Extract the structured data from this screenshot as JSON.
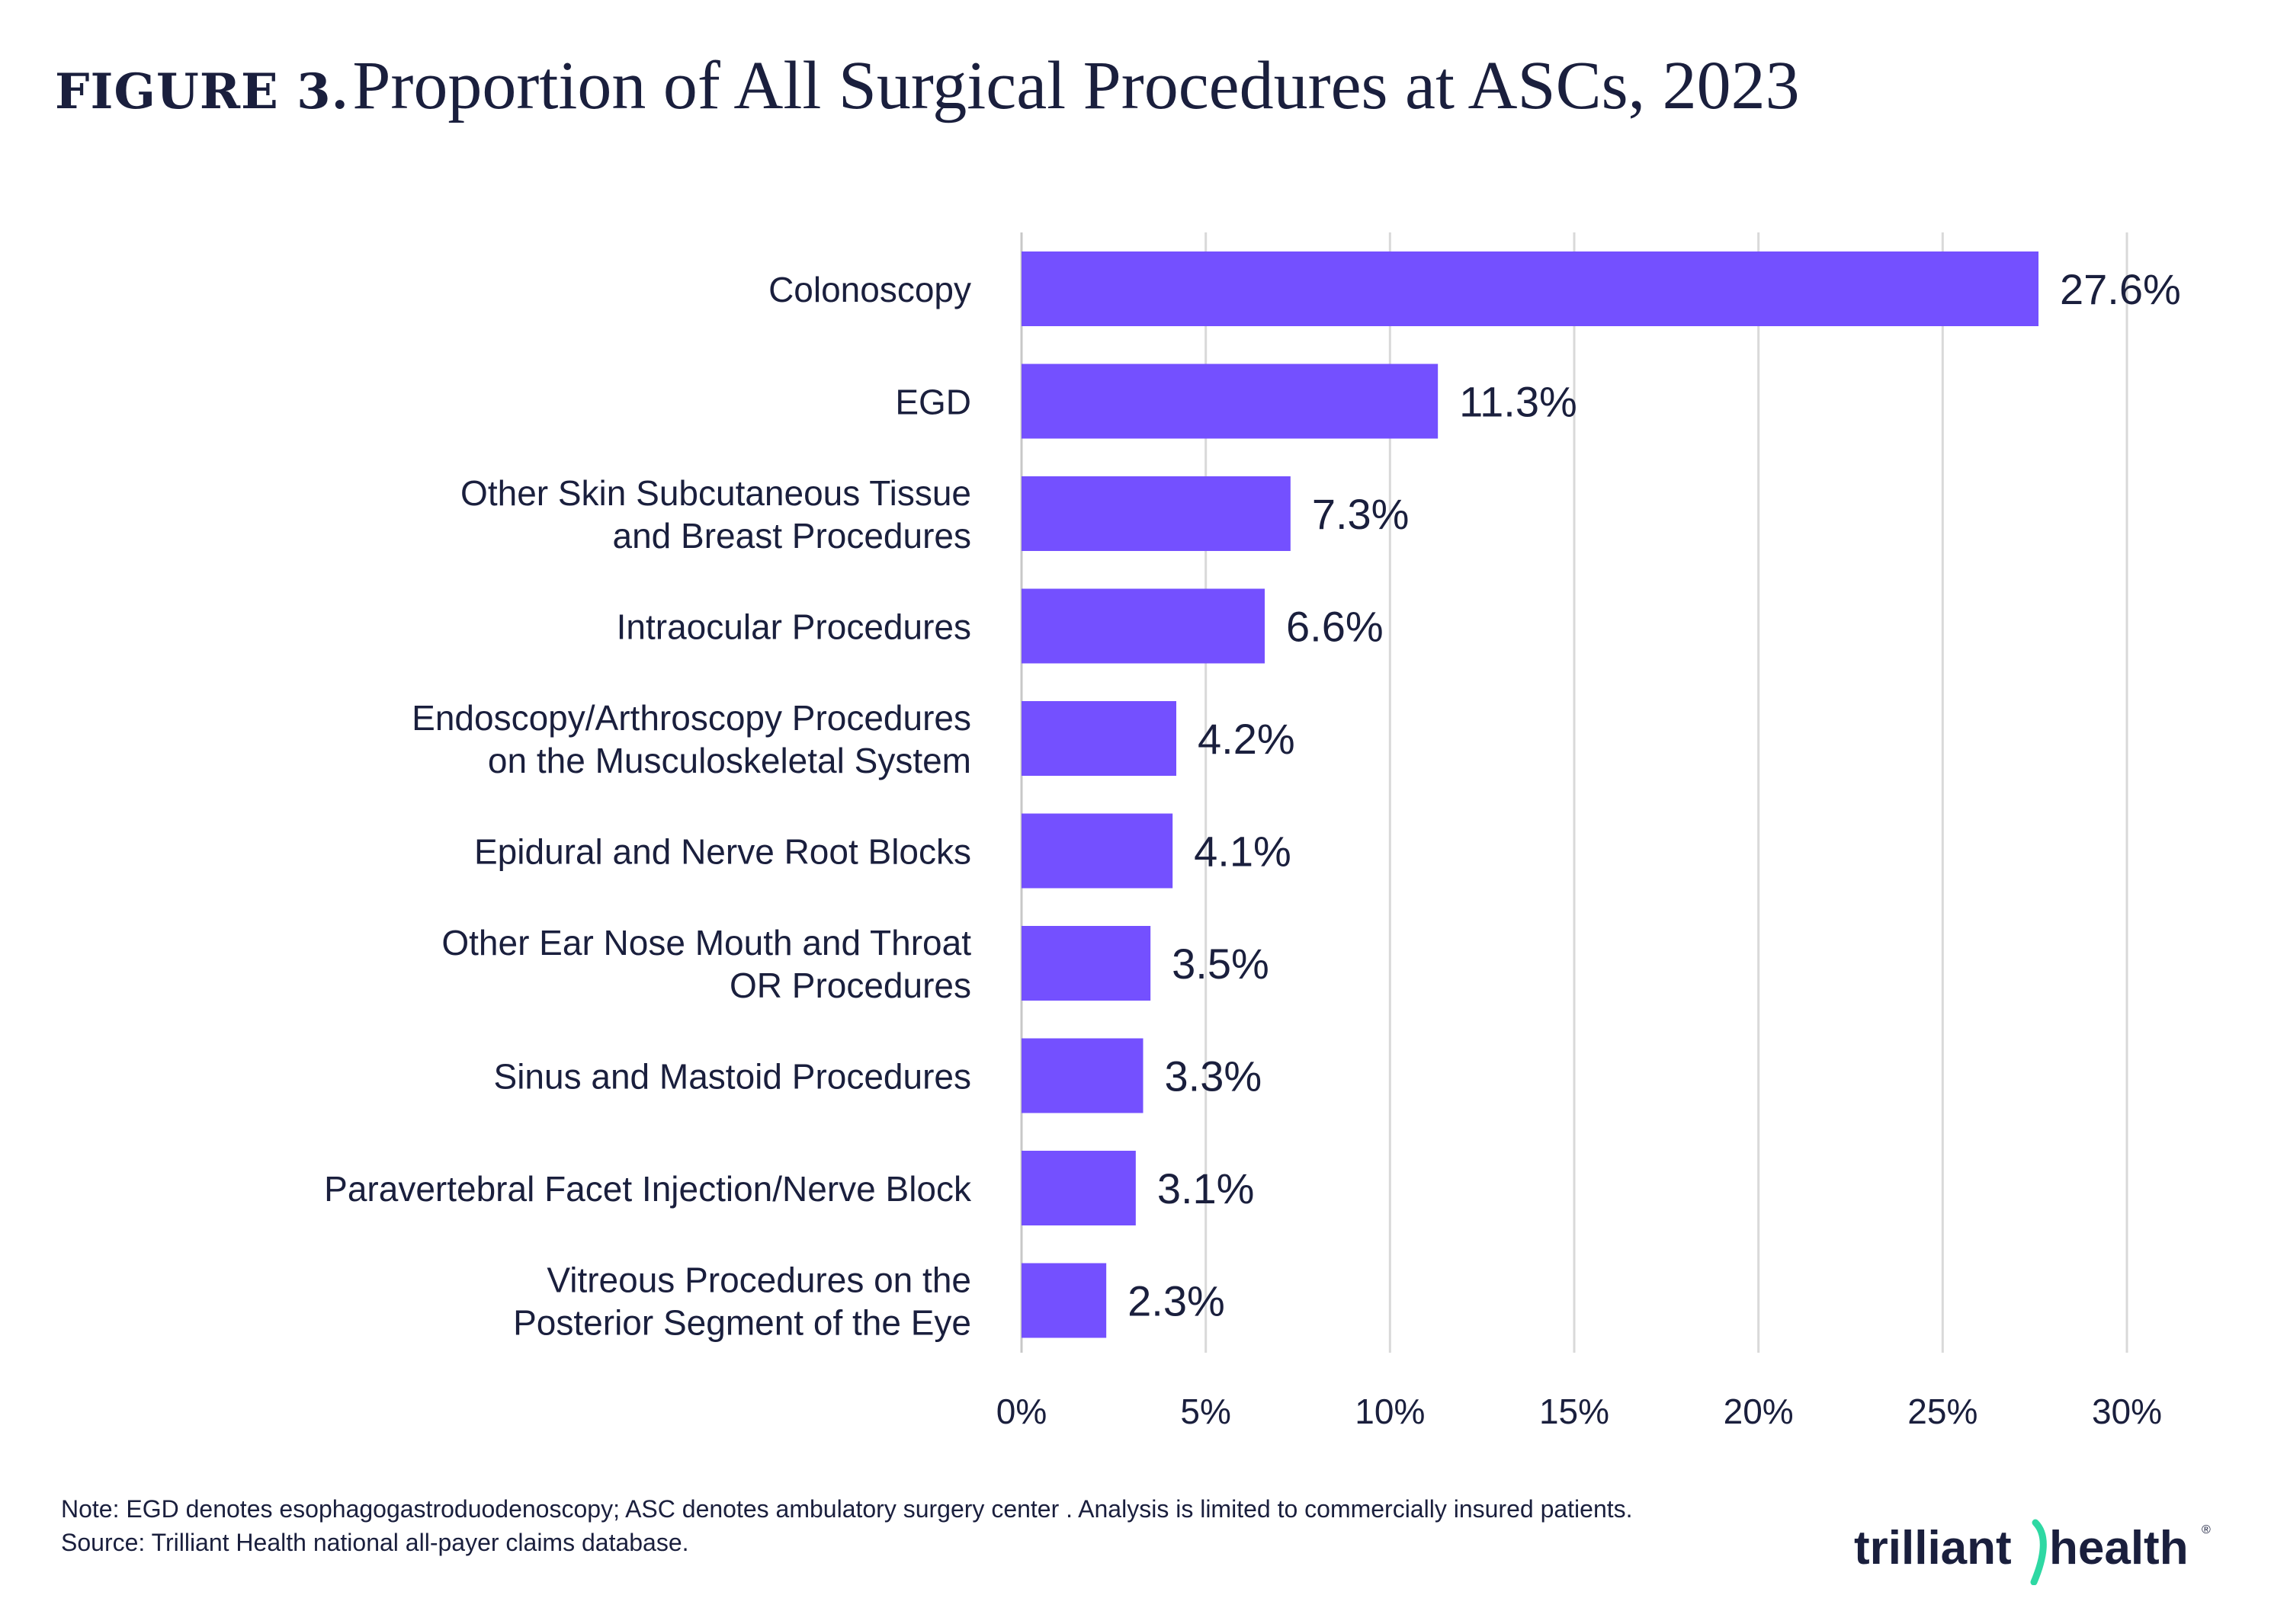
{
  "title": {
    "label": "FIGURE 3.",
    "text": "Proportion of All Surgical Procedures at ASCs, 2023"
  },
  "footnotes": {
    "note": "Note: EGD denotes esophagogastroduodenoscopy; ASC denotes ambulatory surgery center . Analysis is limited to commercially insured patients.",
    "source": "Source: Trilliant Health national all-payer claims database."
  },
  "logo": {
    "text_left": "trilliant",
    "text_right": "health",
    "mark": "®"
  },
  "colors": {
    "bar": "#7450ff",
    "text": "#1a1f3d",
    "grid": "#d9d9d9",
    "logo_accent": "#2ed8a3"
  },
  "chart_data": {
    "type": "bar",
    "orientation": "horizontal",
    "categories": [
      [
        "Colonoscopy"
      ],
      [
        "EGD"
      ],
      [
        "Other Skin Subcutaneous Tissue",
        "and Breast Procedures"
      ],
      [
        "Intraocular Procedures"
      ],
      [
        "Endoscopy/Arthroscopy Procedures",
        "on the Musculoskeletal System"
      ],
      [
        "Epidural and Nerve Root Blocks"
      ],
      [
        "Other Ear Nose Mouth and Throat",
        "OR Procedures"
      ],
      [
        "Sinus and Mastoid Procedures"
      ],
      [
        "Paravertebral Facet Injection/Nerve Block"
      ],
      [
        "Vitreous Procedures on the",
        "Posterior Segment of the Eye"
      ]
    ],
    "values": [
      27.6,
      11.3,
      7.3,
      6.6,
      4.2,
      4.1,
      3.5,
      3.3,
      3.1,
      2.3
    ],
    "value_labels": [
      "27.6%",
      "11.3%",
      "7.3%",
      "6.6%",
      "4.2%",
      "4.1%",
      "3.5%",
      "3.3%",
      "3.1%",
      "2.3%"
    ],
    "xlim": [
      0,
      30
    ],
    "xticks": [
      0,
      5,
      10,
      15,
      20,
      25,
      30
    ],
    "xtick_labels": [
      "0%",
      "5%",
      "10%",
      "15%",
      "20%",
      "25%",
      "30%"
    ],
    "grid": true,
    "legend": "none"
  }
}
